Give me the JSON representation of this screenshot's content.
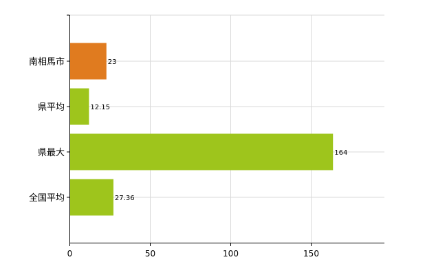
{
  "chart_data": {
    "type": "bar",
    "orientation": "horizontal",
    "categories": [
      "南相馬市",
      "県平均",
      "県最大",
      "全国平均"
    ],
    "values": [
      23,
      12.15,
      164,
      27.36
    ],
    "value_labels": [
      "23",
      "12.15",
      "164",
      "27.36"
    ],
    "bar_colors": [
      "#e07b1f",
      "#9ec51c",
      "#9ec51c",
      "#9ec51c"
    ],
    "x_ticks": [
      0,
      50,
      100,
      150
    ],
    "x_tick_labels": [
      "0",
      "50",
      "100",
      "150"
    ],
    "xlim": [
      0,
      196
    ],
    "grid": true,
    "legend": "none",
    "colors": {
      "highlight": "#e07b1f",
      "default": "#9ec51c",
      "grid": "#d9d9d9",
      "axis": "#000000"
    }
  }
}
